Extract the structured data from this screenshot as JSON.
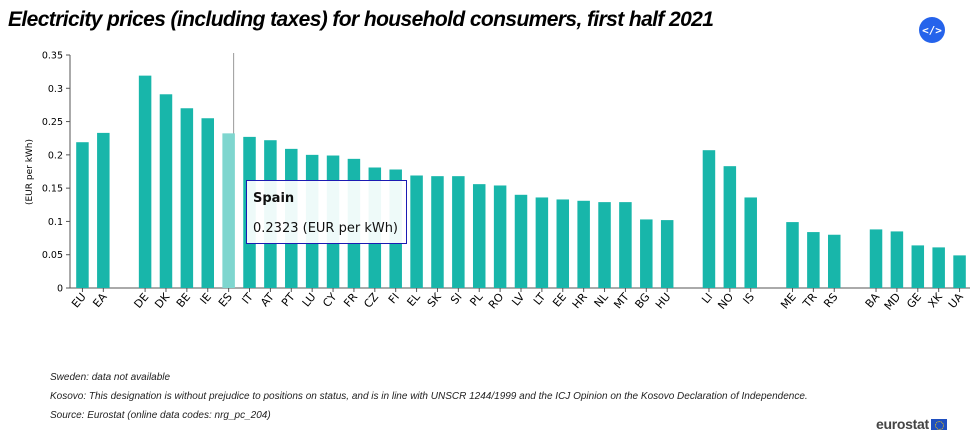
{
  "title": "Electricity prices (including taxes) for household consumers, first half 2021",
  "embed_button": {
    "label": "</>"
  },
  "chart_data": {
    "type": "bar",
    "title": "Electricity prices (including taxes) for household consumers, first half 2021",
    "xlabel": "",
    "ylabel": "(EUR per kWh)",
    "ylim": [
      0,
      0.35
    ],
    "yticks": [
      0,
      0.05,
      0.1,
      0.15,
      0.2,
      0.25,
      0.3,
      0.35
    ],
    "ytick_labels": [
      "0",
      "0.05",
      "0.1",
      "0.15",
      "0.2",
      "0.25",
      "0.3",
      "0.35"
    ],
    "bar_color": "#18b6aa",
    "highlight_color": "#7fd6cf",
    "categories": [
      "EU",
      "EA",
      "DE",
      "DK",
      "BE",
      "IE",
      "ES",
      "IT",
      "AT",
      "PT",
      "LU",
      "CY",
      "FR",
      "CZ",
      "FI",
      "EL",
      "SK",
      "SI",
      "PL",
      "RO",
      "LV",
      "LT",
      "EE",
      "HR",
      "NL",
      "MT",
      "BG",
      "HU",
      "LI",
      "NO",
      "IS",
      "ME",
      "TR",
      "RS",
      "BA",
      "MD",
      "GE",
      "XK",
      "UA"
    ],
    "values": [
      0.219,
      0.233,
      0.319,
      0.291,
      0.27,
      0.255,
      0.2323,
      0.227,
      0.222,
      0.209,
      0.2,
      0.199,
      0.194,
      0.181,
      0.178,
      0.169,
      0.168,
      0.168,
      0.156,
      0.154,
      0.14,
      0.136,
      0.133,
      0.131,
      0.129,
      0.129,
      0.103,
      0.102,
      0.207,
      0.183,
      0.136,
      0.099,
      0.084,
      0.08,
      0.088,
      0.085,
      0.064,
      0.061,
      0.049
    ],
    "groups": [
      2,
      26,
      3,
      3,
      5
    ],
    "highlight_index": 6
  },
  "tooltip": {
    "name": "Spain",
    "value": "0.2323 (EUR per kWh)"
  },
  "notes": [
    "Sweden: data not available",
    "Kosovo: This designation is without prejudice to positions on status, and is in line with UNSCR 1244/1999 and the ICJ Opinion on the Kosovo Declaration of Independence.",
    "Source: Eurostat (online data codes: nrg_pc_204)"
  ],
  "logo": {
    "text": "eurostat"
  }
}
